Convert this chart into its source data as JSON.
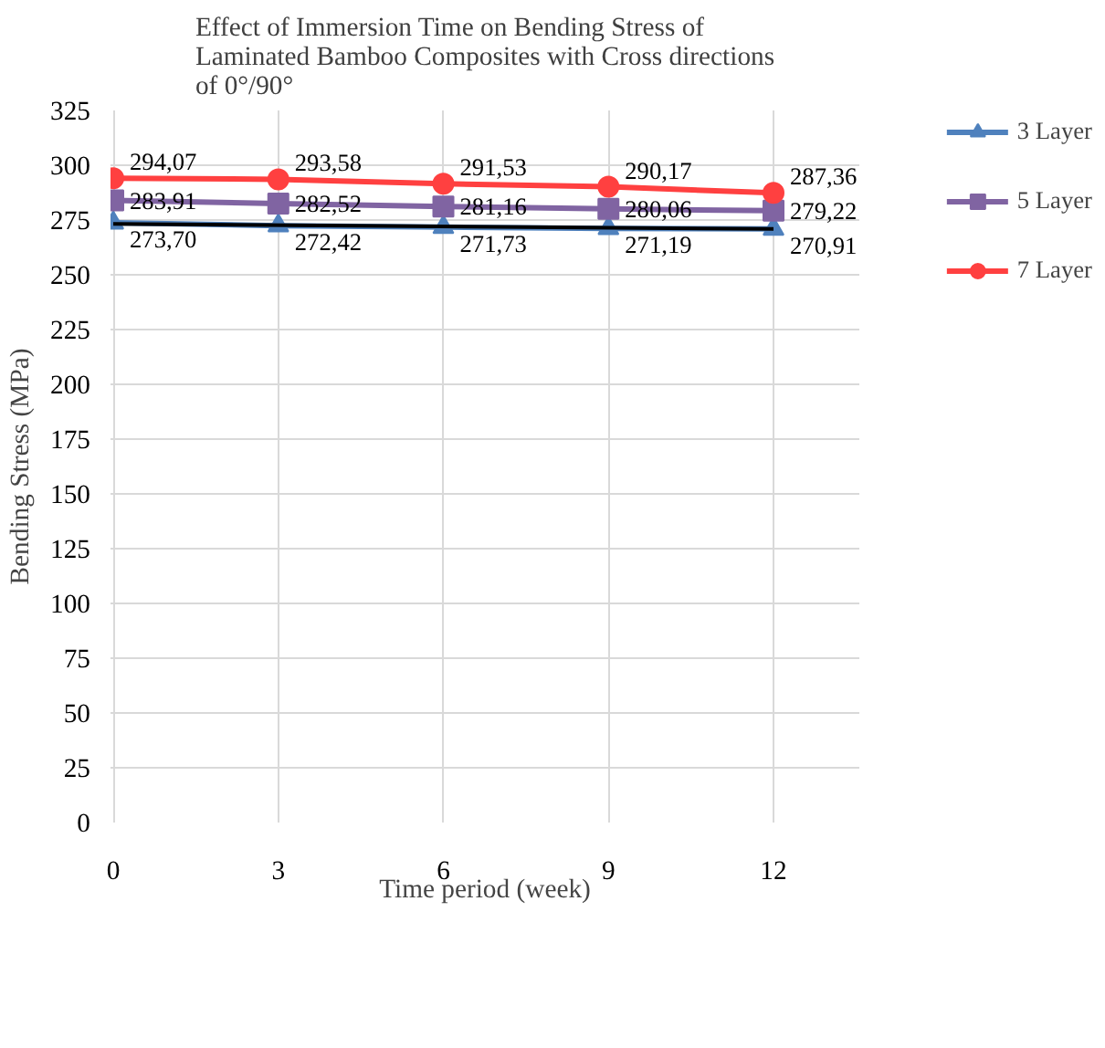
{
  "chart_data": {
    "type": "line",
    "title": "Effect of Immersion Time on Bending Stress of\nLaminated Bamboo Composites with Cross directions\nof 0°/90°",
    "xlabel": "Time period (week)",
    "ylabel": "Bending Stress (MPa)",
    "x": [
      0,
      3,
      6,
      9,
      12
    ],
    "xlim": [
      0,
      12
    ],
    "xticks": [
      0,
      3,
      6,
      9,
      12
    ],
    "ylim": [
      0,
      325
    ],
    "yticks": [
      0,
      25,
      50,
      75,
      100,
      125,
      150,
      175,
      200,
      225,
      250,
      275,
      300,
      325
    ],
    "grid": true,
    "legend": "right",
    "series": [
      {
        "name": "3 Layer",
        "color": "#4f81bd",
        "marker": "triangle",
        "values": [
          273.7,
          272.42,
          271.73,
          271.19,
          270.91
        ],
        "value_labels": [
          "273,70",
          "272,42",
          "271,73",
          "271,19",
          "270,91"
        ]
      },
      {
        "name": "5 Layer",
        "color": "#8064a2",
        "marker": "square",
        "values": [
          283.91,
          282.52,
          281.16,
          280.06,
          279.22
        ],
        "value_labels": [
          "283,91",
          "282,52",
          "281,16",
          "280,06",
          "279,22"
        ]
      },
      {
        "name": "7 Layer",
        "color": "#ff4040",
        "marker": "circle",
        "values": [
          294.07,
          293.58,
          291.53,
          290.17,
          287.36
        ],
        "value_labels": [
          "294,07",
          "293,58",
          "291,53",
          "290,17",
          "287,36"
        ]
      },
      {
        "type": "line",
        "color": "#000000",
        "marker": "none",
        "x": [
          0,
          12
        ],
        "values": [
          273.2,
          270.9
        ]
      }
    ]
  }
}
